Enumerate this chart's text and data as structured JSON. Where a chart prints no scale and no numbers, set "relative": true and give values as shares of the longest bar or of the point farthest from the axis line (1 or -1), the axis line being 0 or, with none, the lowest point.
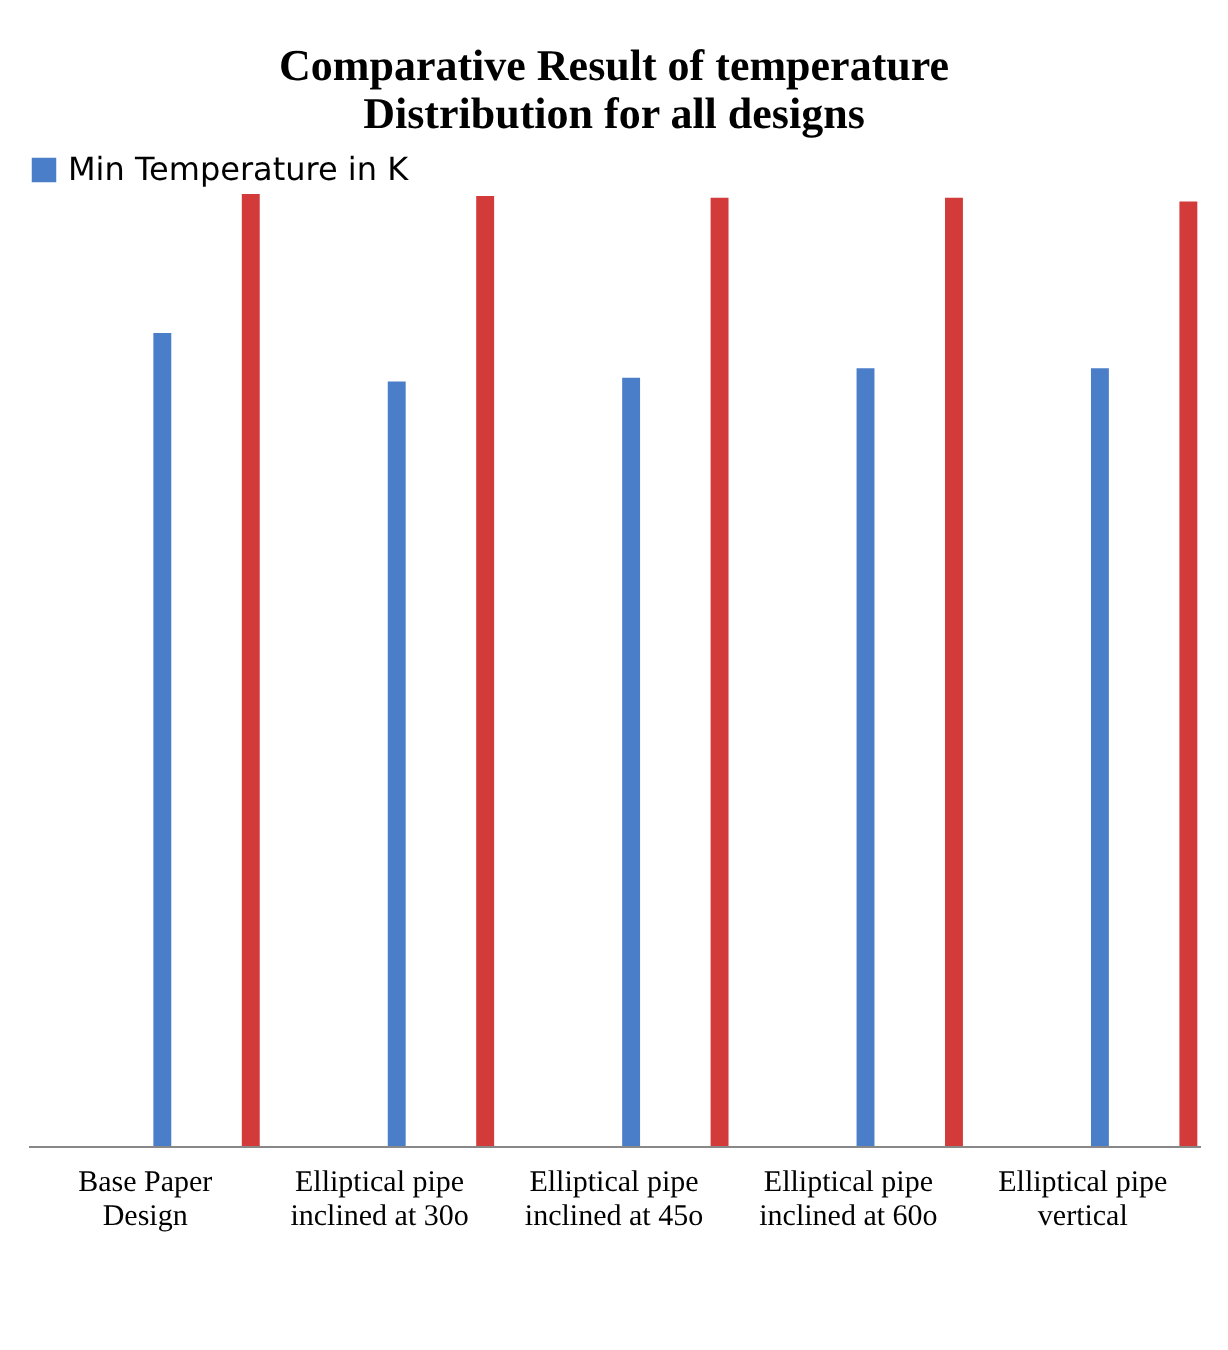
{
  "chart_data": {
    "type": "bar",
    "title": [
      "Comparative Result of temperature",
      "Distribution for all designs"
    ],
    "relative": true,
    "legend": "top",
    "categories": [
      "Base Paper Design",
      "Elliptical pipe inclined at 30o",
      "Elliptical pipe inclined at 45o",
      "Elliptical pipe inclined at 60o",
      "Elliptical pipe vertical"
    ],
    "series": [
      {
        "name": "Min Temperature in K",
        "color": "#4a7ec8",
        "values": [
          0.854,
          0.803,
          0.807,
          0.817,
          0.817
        ]
      },
      {
        "color": "#d33a3a",
        "values": [
          1,
          0.998,
          0.996,
          0.996,
          0.992
        ]
      }
    ]
  }
}
